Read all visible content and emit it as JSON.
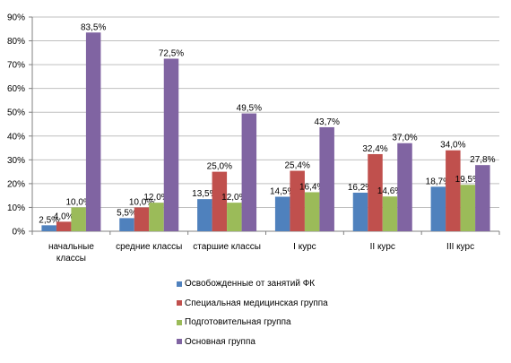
{
  "chart_data": {
    "type": "bar",
    "categories": [
      [
        "начальные",
        "классы"
      ],
      [
        "средние классы"
      ],
      [
        "старшие классы"
      ],
      [
        "I курс"
      ],
      [
        "II курс"
      ],
      [
        "III курс"
      ]
    ],
    "series": [
      {
        "name": "Освобожденные от занятий ФК",
        "color": "#4f81bd",
        "values": [
          2.5,
          5.5,
          13.5,
          14.5,
          16.2,
          18.7
        ],
        "labels": [
          "2,5%",
          "5,5%",
          "13,5%",
          "14,5%",
          "16,2%",
          "18,7%"
        ]
      },
      {
        "name": "Специальная медицинская группа",
        "color": "#c0504d",
        "values": [
          4.0,
          10.0,
          25.0,
          25.4,
          32.4,
          34.0
        ],
        "labels": [
          "4,0%",
          "10,0%",
          "25,0%",
          "25,4%",
          "32,4%",
          "34,0%"
        ]
      },
      {
        "name": "Подготовительная группа",
        "color": "#9bbb59",
        "values": [
          10.0,
          12.0,
          12.0,
          16.4,
          14.6,
          19.5
        ],
        "labels": [
          "10,0%",
          "12,0%",
          "12,0%",
          "16,4%",
          "14,6%",
          "19,5%"
        ]
      },
      {
        "name": "Основная группа",
        "color": "#8064a2",
        "values": [
          83.5,
          72.5,
          49.5,
          43.7,
          37.0,
          27.8
        ],
        "labels": [
          "83,5%",
          "72,5%",
          "49,5%",
          "43,7%",
          "37,0%",
          "27,8%"
        ]
      }
    ],
    "yticks": [
      "0%",
      "10%",
      "20%",
      "30%",
      "40%",
      "50%",
      "60%",
      "70%",
      "80%",
      "90%"
    ],
    "ylim": [
      0,
      90
    ],
    "grid": true,
    "legend_position": "bottom"
  }
}
